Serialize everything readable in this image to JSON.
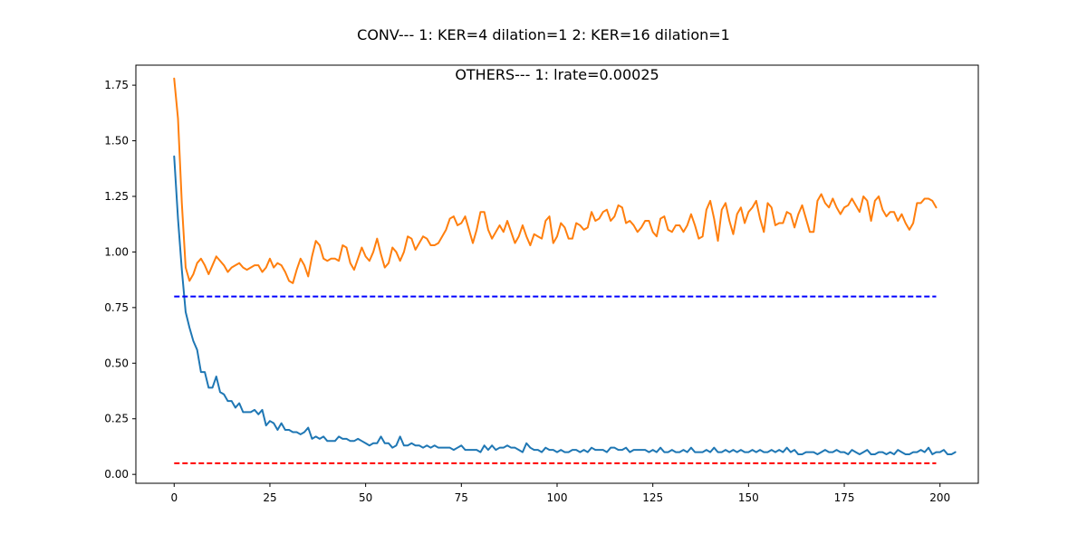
{
  "figure": {
    "suptitle": "CONV--- 1: KER=4   dilation=1   2: KER=16   dilation=1"
  },
  "chart_data": {
    "type": "line",
    "title": "OTHERS--- 1: lrate=0.00025",
    "xlabel": "",
    "ylabel": "",
    "xlim": [
      -10,
      210
    ],
    "ylim": [
      -0.04,
      1.84
    ],
    "xticks": [
      0,
      25,
      50,
      75,
      100,
      125,
      150,
      175,
      200
    ],
    "xtick_labels": [
      "0",
      "25",
      "50",
      "75",
      "100",
      "125",
      "150",
      "175",
      "200"
    ],
    "yticks": [
      0.0,
      0.25,
      0.5,
      0.75,
      1.0,
      1.25,
      1.5,
      1.75
    ],
    "ytick_labels": [
      "0.00",
      "0.25",
      "0.50",
      "0.75",
      "1.00",
      "1.25",
      "1.50",
      "1.75"
    ],
    "grid": false,
    "legend": "none",
    "series": [
      {
        "color": "#1f77b4",
        "style": "solid",
        "x_start": 0,
        "x_step": 1,
        "values": [
          1.43,
          1.15,
          0.92,
          0.73,
          0.66,
          0.6,
          0.56,
          0.46,
          0.46,
          0.39,
          0.39,
          0.44,
          0.37,
          0.36,
          0.33,
          0.33,
          0.3,
          0.32,
          0.28,
          0.28,
          0.28,
          0.29,
          0.27,
          0.29,
          0.22,
          0.24,
          0.23,
          0.2,
          0.23,
          0.2,
          0.2,
          0.19,
          0.19,
          0.18,
          0.19,
          0.21,
          0.16,
          0.17,
          0.16,
          0.17,
          0.15,
          0.15,
          0.15,
          0.17,
          0.16,
          0.16,
          0.15,
          0.15,
          0.16,
          0.15,
          0.14,
          0.13,
          0.14,
          0.14,
          0.17,
          0.14,
          0.14,
          0.12,
          0.13,
          0.17,
          0.13,
          0.13,
          0.14,
          0.13,
          0.13,
          0.12,
          0.13,
          0.12,
          0.13,
          0.12,
          0.12,
          0.12,
          0.12,
          0.11,
          0.12,
          0.13,
          0.11,
          0.11,
          0.11,
          0.11,
          0.1,
          0.13,
          0.11,
          0.13,
          0.11,
          0.12,
          0.12,
          0.13,
          0.12,
          0.12,
          0.11,
          0.1,
          0.14,
          0.12,
          0.11,
          0.11,
          0.1,
          0.12,
          0.11,
          0.11,
          0.1,
          0.11,
          0.1,
          0.1,
          0.11,
          0.11,
          0.1,
          0.11,
          0.1,
          0.12,
          0.11,
          0.11,
          0.11,
          0.1,
          0.12,
          0.12,
          0.11,
          0.11,
          0.12,
          0.1,
          0.11,
          0.11,
          0.11,
          0.11,
          0.1,
          0.11,
          0.1,
          0.12,
          0.1,
          0.1,
          0.11,
          0.1,
          0.1,
          0.11,
          0.1,
          0.12,
          0.1,
          0.1,
          0.1,
          0.11,
          0.1,
          0.12,
          0.1,
          0.1,
          0.11,
          0.1,
          0.11,
          0.1,
          0.11,
          0.1,
          0.1,
          0.11,
          0.1,
          0.11,
          0.1,
          0.1,
          0.11,
          0.1,
          0.11,
          0.1,
          0.12,
          0.1,
          0.11,
          0.09,
          0.09,
          0.1,
          0.1,
          0.1,
          0.09,
          0.1,
          0.11,
          0.1,
          0.1,
          0.11,
          0.1,
          0.1,
          0.09,
          0.11,
          0.1,
          0.09,
          0.1,
          0.11,
          0.09,
          0.09,
          0.1,
          0.1,
          0.09,
          0.1,
          0.09,
          0.11,
          0.1,
          0.09,
          0.09,
          0.1,
          0.1,
          0.11,
          0.1,
          0.12,
          0.09,
          0.1,
          0.1,
          0.11,
          0.09,
          0.09,
          0.1
        ]
      },
      {
        "color": "#ff7f0e",
        "style": "solid",
        "x_start": 0,
        "x_step": 1,
        "values": [
          1.78,
          1.6,
          1.22,
          0.93,
          0.87,
          0.9,
          0.95,
          0.97,
          0.94,
          0.9,
          0.94,
          0.98,
          0.96,
          0.94,
          0.91,
          0.93,
          0.94,
          0.95,
          0.93,
          0.92,
          0.93,
          0.94,
          0.94,
          0.91,
          0.93,
          0.97,
          0.93,
          0.95,
          0.94,
          0.91,
          0.87,
          0.86,
          0.92,
          0.97,
          0.94,
          0.89,
          0.98,
          1.05,
          1.03,
          0.97,
          0.96,
          0.97,
          0.97,
          0.96,
          1.03,
          1.02,
          0.95,
          0.92,
          0.97,
          1.02,
          0.98,
          0.96,
          1.0,
          1.06,
          0.99,
          0.93,
          0.95,
          1.02,
          1.0,
          0.96,
          1.0,
          1.07,
          1.06,
          1.01,
          1.04,
          1.07,
          1.06,
          1.03,
          1.03,
          1.04,
          1.07,
          1.1,
          1.15,
          1.16,
          1.12,
          1.13,
          1.16,
          1.1,
          1.04,
          1.1,
          1.18,
          1.18,
          1.1,
          1.06,
          1.09,
          1.12,
          1.09,
          1.14,
          1.09,
          1.04,
          1.07,
          1.12,
          1.07,
          1.03,
          1.08,
          1.07,
          1.06,
          1.14,
          1.16,
          1.04,
          1.07,
          1.13,
          1.11,
          1.06,
          1.06,
          1.13,
          1.12,
          1.1,
          1.11,
          1.18,
          1.14,
          1.15,
          1.18,
          1.19,
          1.14,
          1.16,
          1.21,
          1.2,
          1.13,
          1.14,
          1.12,
          1.09,
          1.11,
          1.14,
          1.14,
          1.09,
          1.07,
          1.15,
          1.16,
          1.1,
          1.09,
          1.12,
          1.12,
          1.09,
          1.12,
          1.17,
          1.12,
          1.06,
          1.07,
          1.19,
          1.23,
          1.15,
          1.05,
          1.19,
          1.22,
          1.14,
          1.08,
          1.17,
          1.2,
          1.13,
          1.18,
          1.2,
          1.23,
          1.15,
          1.09,
          1.22,
          1.2,
          1.12,
          1.13,
          1.13,
          1.18,
          1.17,
          1.11,
          1.17,
          1.21,
          1.15,
          1.09,
          1.09,
          1.23,
          1.26,
          1.22,
          1.2,
          1.24,
          1.2,
          1.17,
          1.2,
          1.21,
          1.24,
          1.21,
          1.18,
          1.25,
          1.23,
          1.14,
          1.23,
          1.25,
          1.19,
          1.16,
          1.18,
          1.18,
          1.14,
          1.17,
          1.13,
          1.1,
          1.13,
          1.22,
          1.22,
          1.24,
          1.24,
          1.23,
          1.2
        ]
      },
      {
        "color": "#0000ff",
        "style": "dashed",
        "x": [
          0,
          199
        ],
        "values": [
          0.8,
          0.8
        ]
      },
      {
        "color": "#ff0000",
        "style": "dashed",
        "x": [
          0,
          199
        ],
        "values": [
          0.05,
          0.05
        ]
      }
    ]
  }
}
